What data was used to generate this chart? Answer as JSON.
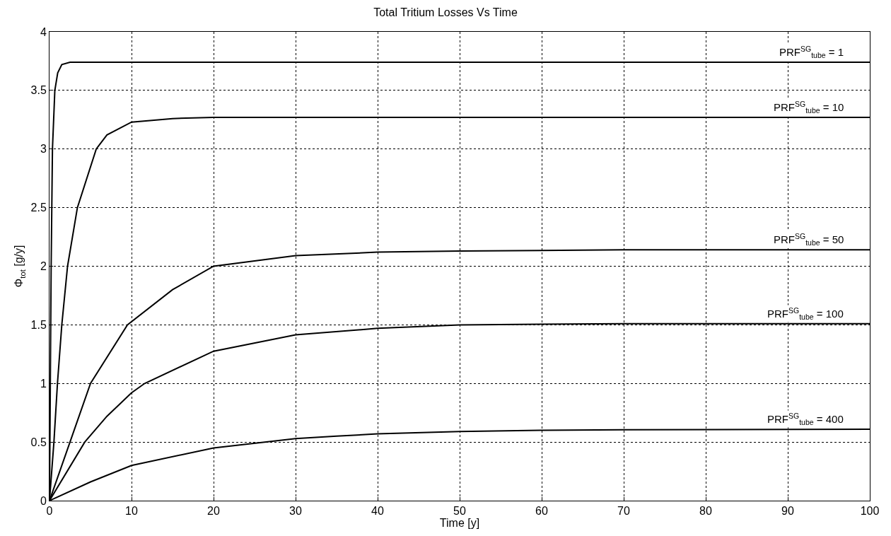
{
  "chart_data": {
    "type": "line",
    "title": "Total Tritium Losses Vs Time",
    "xlabel": "Time [y]",
    "ylabel": "Φ$_{tot}$ [g/y]",
    "xlim": [
      0,
      100
    ],
    "xticks": [
      0,
      10,
      20,
      30,
      40,
      50,
      60,
      70,
      80,
      90,
      100
    ],
    "ylim": [
      0,
      4
    ],
    "yticks": [
      0,
      0.5,
      1,
      1.5,
      2,
      2.5,
      3,
      3.5,
      4
    ],
    "grid": true,
    "legend": false,
    "line_style": "solid",
    "marker": "none",
    "series": [
      {
        "name": "PRF$^{SG}$$_{tube}$ = 1",
        "color": "#000000",
        "x": [
          0,
          0.1,
          0.2,
          0.36,
          0.65,
          1,
          1.5,
          2.5,
          10,
          50,
          100
        ],
        "values": [
          0,
          1.0,
          2.0,
          3.0,
          3.5,
          3.65,
          3.72,
          3.74,
          3.74,
          3.74,
          3.74
        ]
      },
      {
        "name": "PRF$^{SG}$$_{tube}$ = 10",
        "color": "#000000",
        "x": [
          0,
          0.54,
          0.97,
          1.5,
          2.2,
          3.4,
          5.7,
          7,
          10,
          15,
          20,
          50,
          100
        ],
        "values": [
          0,
          0.5,
          1.0,
          1.5,
          2.0,
          2.5,
          3.0,
          3.12,
          3.23,
          3.26,
          3.27,
          3.27,
          3.27
        ]
      },
      {
        "name": "PRF$^{SG}$$_{tube}$ = 50",
        "color": "#000000",
        "x": [
          0,
          2.5,
          5,
          9.5,
          15,
          20,
          30,
          40,
          50,
          70,
          100
        ],
        "values": [
          0,
          0.5,
          1.0,
          1.5,
          1.8,
          2.0,
          2.09,
          2.12,
          2.13,
          2.14,
          2.14
        ]
      },
      {
        "name": "PRF$^{SG}$$_{tube}$ = 100",
        "color": "#000000",
        "x": [
          0,
          4.3,
          7,
          10,
          11.6,
          20,
          30,
          40,
          50,
          70,
          100
        ],
        "values": [
          0,
          0.5,
          0.72,
          0.92,
          1.0,
          1.275,
          1.415,
          1.47,
          1.5,
          1.51,
          1.51
        ]
      },
      {
        "name": "PRF$^{SG}$$_{tube}$ = 400",
        "color": "#000000",
        "x": [
          0,
          5,
          10,
          20,
          30,
          35,
          40,
          50,
          60,
          70,
          100
        ],
        "values": [
          0,
          0.16,
          0.3,
          0.45,
          0.53,
          0.55,
          0.57,
          0.59,
          0.6,
          0.605,
          0.61
        ]
      }
    ]
  }
}
